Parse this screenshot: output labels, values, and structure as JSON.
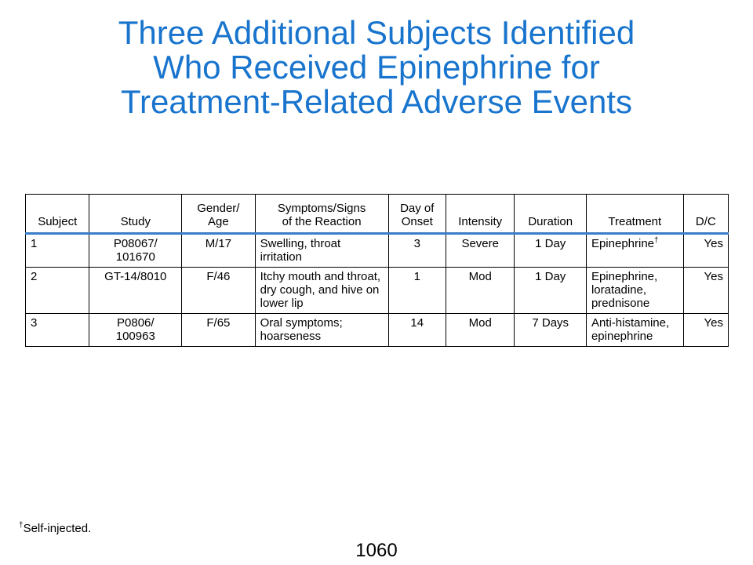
{
  "title": {
    "line1": "Three Additional Subjects Identified",
    "line2": "Who Received Epinephrine for",
    "line3": "Treatment-Related Adverse Events"
  },
  "table": {
    "headers": {
      "subject": "Subject",
      "study": "Study",
      "gender_age_1": "Gender/",
      "gender_age_2": "Age",
      "symptoms_1": "Symptoms/Signs",
      "symptoms_2": "of the Reaction",
      "onset_1": "Day of",
      "onset_2": "Onset",
      "intensity": "Intensity",
      "duration": "Duration",
      "treatment": "Treatment",
      "dc": "D/C"
    },
    "rows": [
      {
        "subject": "1",
        "study_1": "P08067/",
        "study_2": "101670",
        "gender_age": "M/17",
        "symptoms": "Swelling, throat irritation",
        "onset": "3",
        "intensity": "Severe",
        "duration": "1 Day",
        "treatment": "Epinephrine",
        "treatment_mark": "†",
        "dc": "Yes"
      },
      {
        "subject": "2",
        "study_1": "GT-14/8010",
        "study_2": "",
        "gender_age": "F/46",
        "symptoms": "Itchy mouth and throat, dry cough, and hive on lower lip",
        "onset": "1",
        "intensity": "Mod",
        "duration": "1 Day",
        "treatment": "Epinephrine, loratadine, prednisone",
        "treatment_mark": "",
        "dc": "Yes"
      },
      {
        "subject": "3",
        "study_1": "P0806/",
        "study_2": "100963",
        "gender_age": "F/65",
        "symptoms": "Oral symptoms; hoarseness",
        "onset": "14",
        "intensity": "Mod",
        "duration": "7 Days",
        "treatment": "Anti-histamine, epinephrine",
        "treatment_mark": "",
        "dc": "Yes"
      }
    ]
  },
  "footnote": {
    "mark": "†",
    "text": "Self-injected."
  },
  "page_number": "1060"
}
